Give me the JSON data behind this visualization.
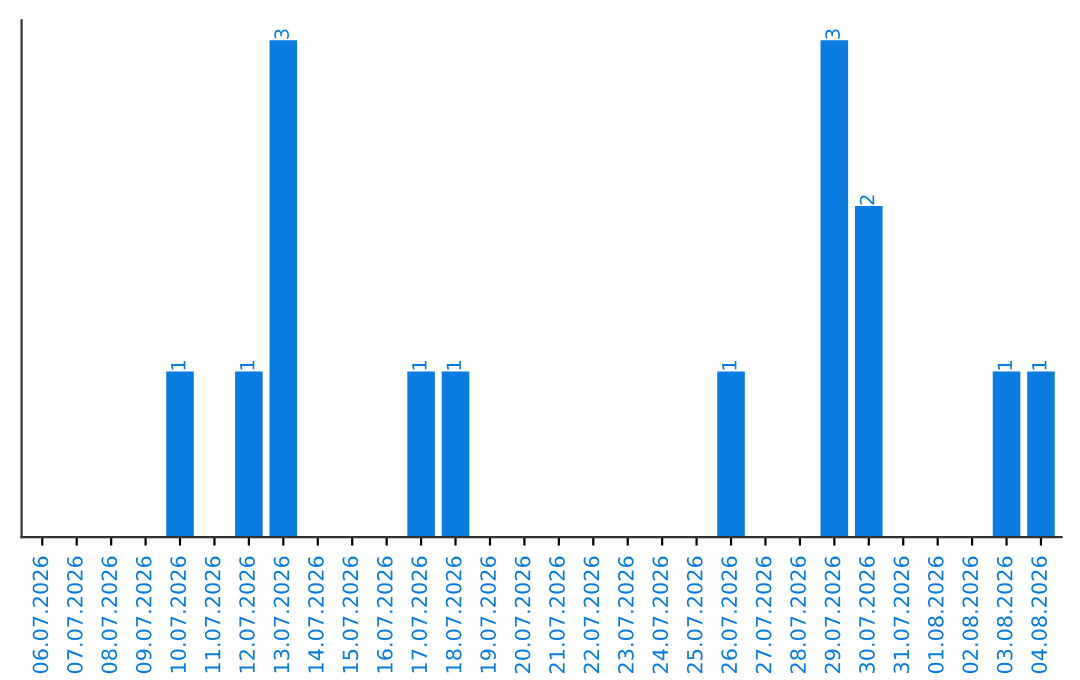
{
  "chart_data": {
    "type": "bar",
    "categories": [
      "06.07.2026",
      "07.07.2026",
      "08.07.2026",
      "09.07.2026",
      "10.07.2026",
      "11.07.2026",
      "12.07.2026",
      "13.07.2026",
      "14.07.2026",
      "15.07.2026",
      "16.07.2026",
      "17.07.2026",
      "18.07.2026",
      "19.07.2026",
      "20.07.2026",
      "21.07.2026",
      "22.07.2026",
      "23.07.2026",
      "24.07.2026",
      "25.07.2026",
      "26.07.2026",
      "27.07.2026",
      "28.07.2026",
      "29.07.2026",
      "30.07.2026",
      "31.07.2026",
      "01.08.2026",
      "02.08.2026",
      "03.08.2026",
      "04.08.2026"
    ],
    "values": [
      0,
      0,
      0,
      0,
      1,
      0,
      1,
      3,
      0,
      0,
      0,
      1,
      1,
      0,
      0,
      0,
      0,
      0,
      0,
      0,
      1,
      0,
      0,
      3,
      2,
      0,
      0,
      0,
      1,
      1
    ],
    "value_labels": [
      null,
      null,
      null,
      null,
      "1",
      null,
      "1",
      "3",
      null,
      null,
      null,
      "1",
      "1",
      null,
      null,
      null,
      null,
      null,
      null,
      null,
      "1",
      null,
      null,
      "3",
      "2",
      null,
      null,
      null,
      "1",
      "1"
    ],
    "color": "#0a7be0",
    "tick_labels": "x",
    "grid": false,
    "legend": false
  }
}
